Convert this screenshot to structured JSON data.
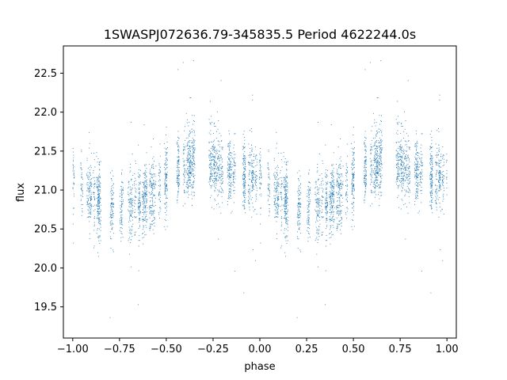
{
  "chart_data": {
    "type": "scatter",
    "title": "1SWASPJ072636.79-345835.5 Period 4622244.0s",
    "xlabel": "phase",
    "ylabel": "flux",
    "xlim": [
      -1.05,
      1.05
    ],
    "ylim": [
      19.1,
      22.85
    ],
    "x_ticks": [
      -1.0,
      -0.75,
      -0.5,
      -0.25,
      0.0,
      0.25,
      0.5,
      0.75,
      1.0
    ],
    "x_tick_labels": [
      "−1.00",
      "−0.75",
      "−0.50",
      "−0.25",
      "0.00",
      "0.25",
      "0.50",
      "0.75",
      "1.00"
    ],
    "y_ticks": [
      19.5,
      20.0,
      20.5,
      21.0,
      21.5,
      22.0,
      22.5
    ],
    "y_tick_labels": [
      "19.5",
      "20.0",
      "20.5",
      "21.0",
      "21.5",
      "22.0",
      "22.5"
    ],
    "grid": false,
    "marker_color": "#1f77b4",
    "profile": [
      {
        "phase": 0.0,
        "flux": 21.15
      },
      {
        "phase": 0.05,
        "flux": 21.05
      },
      {
        "phase": 0.1,
        "flux": 20.92
      },
      {
        "phase": 0.15,
        "flux": 20.85
      },
      {
        "phase": 0.2,
        "flux": 20.8
      },
      {
        "phase": 0.25,
        "flux": 20.78
      },
      {
        "phase": 0.3,
        "flux": 20.82
      },
      {
        "phase": 0.35,
        "flux": 20.85
      },
      {
        "phase": 0.4,
        "flux": 20.92
      },
      {
        "phase": 0.45,
        "flux": 21.0
      },
      {
        "phase": 0.5,
        "flux": 21.08
      },
      {
        "phase": 0.55,
        "flux": 21.2
      },
      {
        "phase": 0.6,
        "flux": 21.28
      },
      {
        "phase": 0.65,
        "flux": 21.38
      },
      {
        "phase": 0.7,
        "flux": 21.42
      },
      {
        "phase": 0.75,
        "flux": 21.35
      },
      {
        "phase": 0.8,
        "flux": 21.25
      },
      {
        "phase": 0.85,
        "flux": 21.22
      },
      {
        "phase": 0.9,
        "flux": 21.18
      },
      {
        "phase": 0.95,
        "flux": 21.15
      },
      {
        "phase": 1.0,
        "flux": 21.15
      }
    ],
    "scatter_sigma": 0.22,
    "n_points_per_cycle": 2600
  }
}
